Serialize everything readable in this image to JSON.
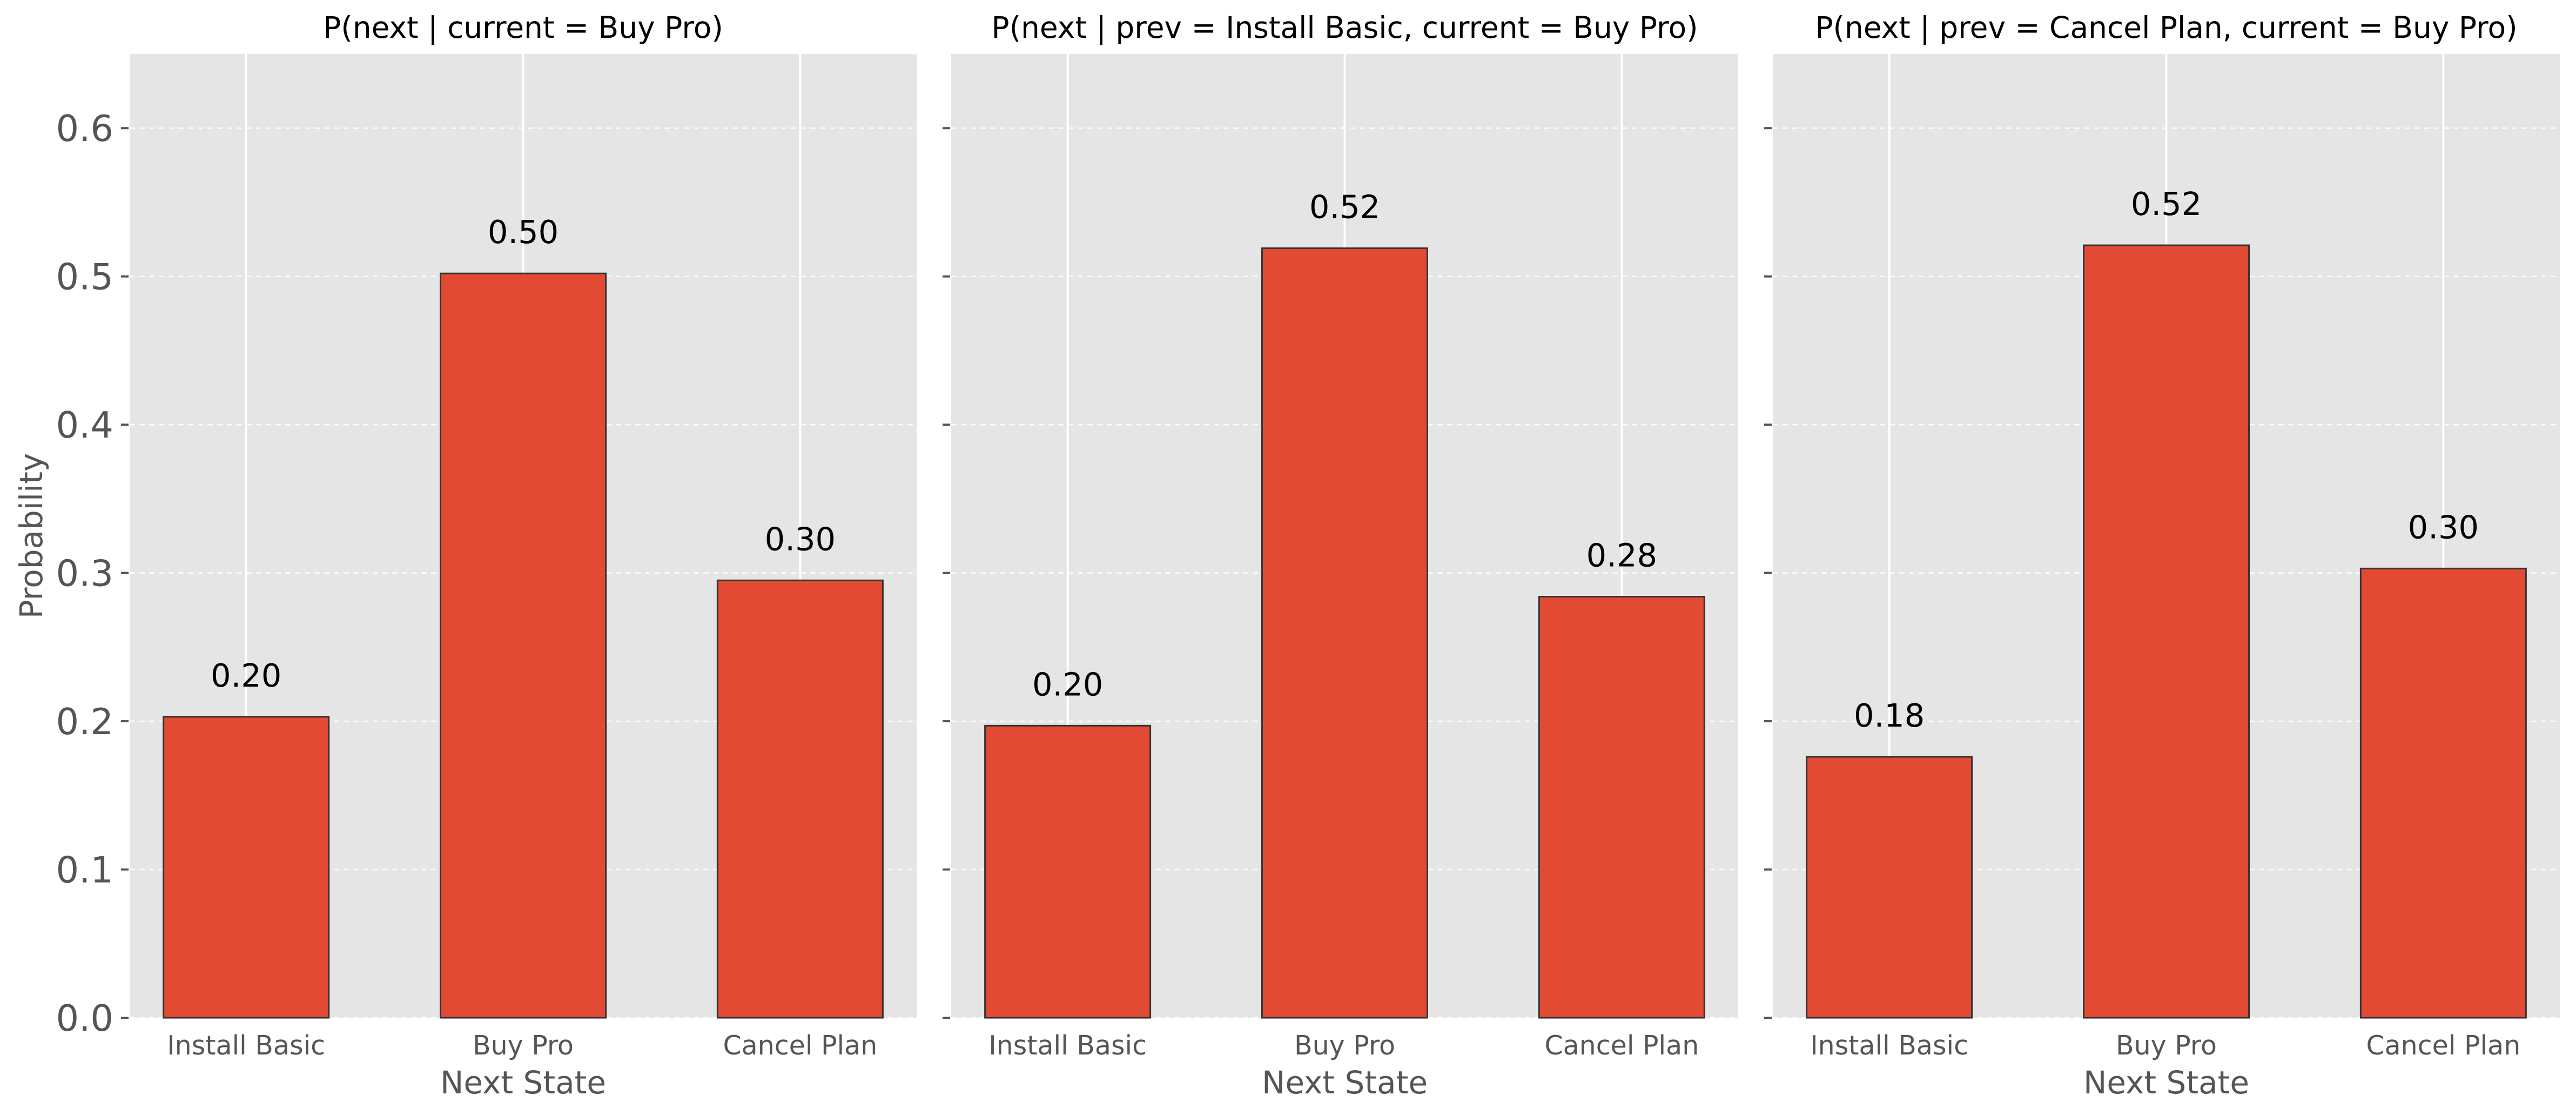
{
  "chart_data": [
    {
      "type": "bar",
      "title": "P(next | current = Buy Pro)",
      "categories": [
        "Install Basic",
        "Buy Pro",
        "Cancel Plan"
      ],
      "values": [
        0.203,
        0.502,
        0.295
      ],
      "data_labels": [
        "0.20",
        "0.50",
        "0.30"
      ],
      "xlabel": "Next State",
      "ylabel": "Probability",
      "ylim": [
        0,
        0.65
      ],
      "yticks": [
        "0.0",
        "0.1",
        "0.2",
        "0.3",
        "0.4",
        "0.5",
        "0.6"
      ],
      "grid": true,
      "bar_color": "#e24a33"
    },
    {
      "type": "bar",
      "title": "P(next | prev = Install Basic, current = Buy Pro)",
      "categories": [
        "Install Basic",
        "Buy Pro",
        "Cancel Plan"
      ],
      "values": [
        0.197,
        0.519,
        0.284
      ],
      "data_labels": [
        "0.20",
        "0.52",
        "0.28"
      ],
      "xlabel": "Next State",
      "ylabel": "",
      "ylim": [
        0,
        0.65
      ],
      "grid": true,
      "bar_color": "#e24a33"
    },
    {
      "type": "bar",
      "title": "P(next | prev = Cancel Plan, current = Buy Pro)",
      "categories": [
        "Install Basic",
        "Buy Pro",
        "Cancel Plan"
      ],
      "values": [
        0.176,
        0.521,
        0.303
      ],
      "data_labels": [
        "0.18",
        "0.52",
        "0.30"
      ],
      "xlabel": "Next State",
      "ylabel": "",
      "ylim": [
        0,
        0.65
      ],
      "grid": true,
      "bar_color": "#e24a33"
    }
  ]
}
